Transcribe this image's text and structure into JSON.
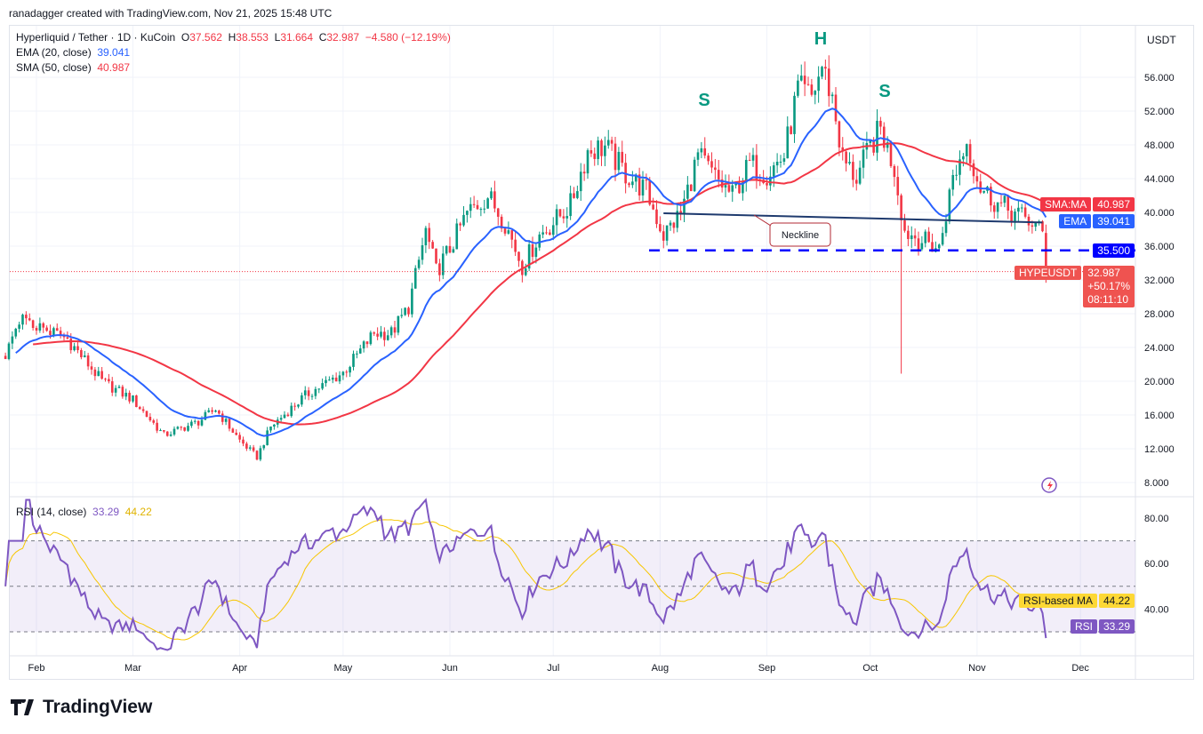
{
  "header": {
    "credit": "ranadagger created with TradingView.com, Nov 21, 2025 15:48 UTC"
  },
  "legend": {
    "symbol": "Hyperliquid / Tether · 1D · KuCoin",
    "o_label": "O",
    "o": "37.562",
    "h_label": "H",
    "h": "38.553",
    "l_label": "L",
    "l": "31.664",
    "c_label": "C",
    "c": "32.987",
    "change": "−4.580 (−12.19%)",
    "ema_label": "EMA (20, close)",
    "ema_value": "39.041",
    "sma_label": "SMA (50, close)",
    "sma_value": "40.987",
    "rsi_label": "RSI (14, close)",
    "rsi_value": "33.29",
    "rsi_ma_value": "44.22"
  },
  "axis": {
    "currency": "USDT",
    "price_ticks": [
      "56.000",
      "52.000",
      "48.000",
      "44.000",
      "40.000",
      "36.000",
      "32.000",
      "28.000",
      "24.000",
      "20.000",
      "16.000",
      "12.000",
      "8.000"
    ],
    "rsi_ticks": [
      "80.00",
      "60.00",
      "40.00"
    ],
    "time_ticks": [
      {
        "label": "Feb",
        "date": "2025-02-01"
      },
      {
        "label": "Mar",
        "date": "2025-03-01"
      },
      {
        "label": "Apr",
        "date": "2025-04-01"
      },
      {
        "label": "May",
        "date": "2025-05-01"
      },
      {
        "label": "Jun",
        "date": "2025-06-01"
      },
      {
        "label": "Jul",
        "date": "2025-07-01"
      },
      {
        "label": "Aug",
        "date": "2025-08-01"
      },
      {
        "label": "Sep",
        "date": "2025-09-01"
      },
      {
        "label": "Oct",
        "date": "2025-10-01"
      },
      {
        "label": "Nov",
        "date": "2025-11-01"
      },
      {
        "label": "Dec",
        "date": "2025-12-01"
      }
    ]
  },
  "tags": {
    "sma_name": "SMA:MA",
    "sma": "40.987",
    "ema_name": "EMA",
    "ema": "39.041",
    "level": "35.500",
    "symbol": "HYPEUSDT",
    "price": "32.987",
    "pct": "+50.17%",
    "countdown": "08:11:10",
    "rsi_ma_name": "RSI-based MA",
    "rsi_ma": "44.22",
    "rsi_name": "RSI",
    "rsi": "33.29"
  },
  "annotations": {
    "left_shoulder": "S",
    "head": "H",
    "right_shoulder": "S",
    "neckline": "Neckline"
  },
  "brand": {
    "name": "TradingView"
  },
  "colors": {
    "up": "#089981",
    "down": "#f23645",
    "ema": "#2962ff",
    "sma": "#f23645",
    "rsi": "#7e57c2",
    "rsi_ma": "#f7c600",
    "neckline": "#1e3a6e",
    "level": "#0000ff"
  },
  "chart_data": {
    "type": "candlestick",
    "title": "Hyperliquid / Tether · 1D · KuCoin",
    "ylim": [
      6,
      60
    ],
    "rsi_ylim": [
      20,
      90
    ],
    "support_level": 35.5,
    "neckline": [
      [
        "2025-08-02",
        39.9
      ],
      [
        "2025-11-20",
        38.8
      ]
    ],
    "last_candle": {
      "date": "2025-11-21",
      "open": 37.562,
      "high": 38.553,
      "low": 31.664,
      "close": 32.987
    },
    "spike_low": {
      "date": "2025-10-10",
      "low": 20.9
    },
    "close_path": [
      [
        "2025-01-23",
        23
      ],
      [
        "2025-01-28",
        27.3
      ],
      [
        "2025-02-10",
        25
      ],
      [
        "2025-02-20",
        20
      ],
      [
        "2025-03-01",
        17.8
      ],
      [
        "2025-03-10",
        13.6
      ],
      [
        "2025-03-20",
        15.2
      ],
      [
        "2025-03-25",
        16.7
      ],
      [
        "2025-04-01",
        13
      ],
      [
        "2025-04-06",
        11
      ],
      [
        "2025-04-10",
        14.6
      ],
      [
        "2025-04-20",
        18.3
      ],
      [
        "2025-05-01",
        21
      ],
      [
        "2025-05-10",
        25.7
      ],
      [
        "2025-05-15",
        25.7
      ],
      [
        "2025-05-20",
        28.8
      ],
      [
        "2025-05-25",
        37.8
      ],
      [
        "2025-05-28",
        33
      ],
      [
        "2025-06-01",
        35.7
      ],
      [
        "2025-06-06",
        39.9
      ],
      [
        "2025-06-12",
        42
      ],
      [
        "2025-06-17",
        38.8
      ],
      [
        "2025-06-22",
        33.6
      ],
      [
        "2025-06-27",
        37.3
      ],
      [
        "2025-07-01",
        38.8
      ],
      [
        "2025-07-06",
        40.9
      ],
      [
        "2025-07-11",
        47.3
      ],
      [
        "2025-07-16",
        47.8
      ],
      [
        "2025-07-22",
        44.6
      ],
      [
        "2025-07-28",
        42.5
      ],
      [
        "2025-08-02",
        37.3
      ],
      [
        "2025-08-07",
        39.9
      ],
      [
        "2025-08-12",
        46.7
      ],
      [
        "2025-08-17",
        44.1
      ],
      [
        "2025-08-22",
        42
      ],
      [
        "2025-08-27",
        45.7
      ],
      [
        "2025-09-01",
        44.6
      ],
      [
        "2025-09-06",
        46.7
      ],
      [
        "2025-09-10",
        54.6
      ],
      [
        "2025-09-14",
        53.6
      ],
      [
        "2025-09-17",
        57.3
      ],
      [
        "2025-09-20",
        53.6
      ],
      [
        "2025-09-23",
        46.2
      ],
      [
        "2025-09-27",
        44.1
      ],
      [
        "2025-10-01",
        47.8
      ],
      [
        "2025-10-04",
        49.9
      ],
      [
        "2025-10-08",
        45.2
      ],
      [
        "2025-10-11",
        37.8
      ],
      [
        "2025-10-16",
        36.7
      ],
      [
        "2025-10-21",
        35.7
      ],
      [
        "2025-10-25",
        44.1
      ],
      [
        "2025-10-29",
        48.3
      ],
      [
        "2025-11-02",
        43
      ],
      [
        "2025-11-07",
        41
      ],
      [
        "2025-11-12",
        39.9
      ],
      [
        "2025-11-17",
        38.8
      ],
      [
        "2025-11-20",
        37.5
      ]
    ]
  }
}
